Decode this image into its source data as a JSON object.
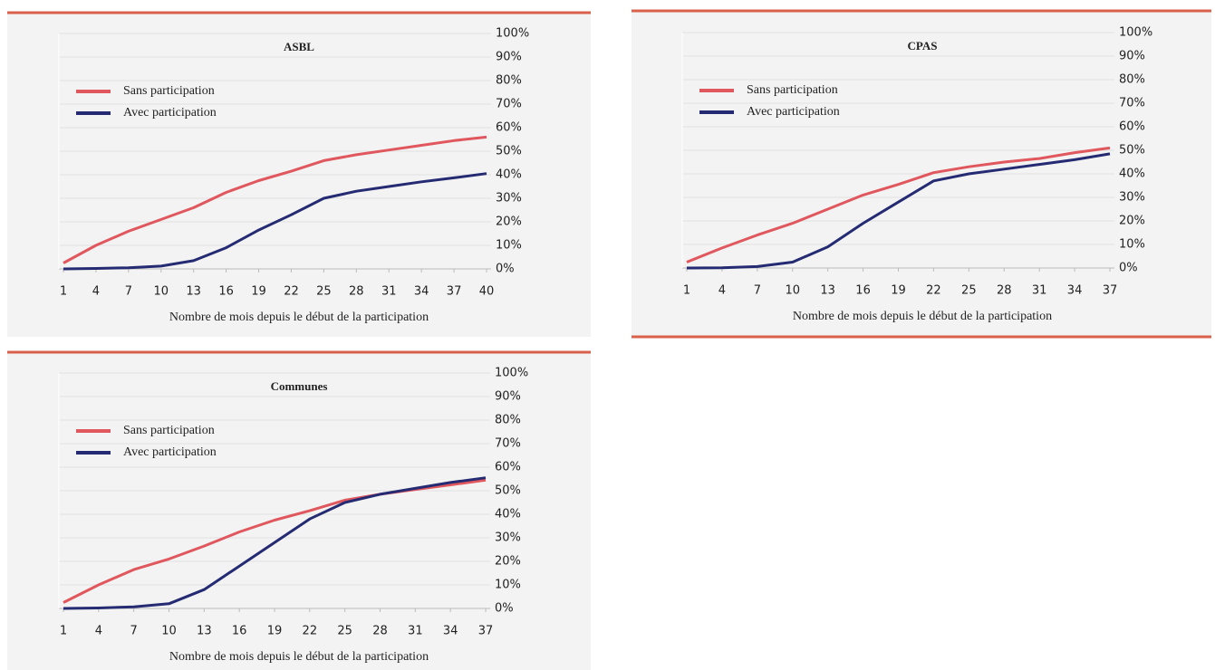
{
  "chart_data": [
    {
      "type": "line",
      "title": "ASBL",
      "xlabel": "Nombre de mois depuis le début de la participation",
      "x": [
        1,
        4,
        7,
        10,
        13,
        16,
        19,
        22,
        25,
        28,
        31,
        34,
        37,
        40
      ],
      "xlim": [
        1,
        40
      ],
      "xticks": [
        1,
        4,
        7,
        10,
        13,
        16,
        19,
        22,
        25,
        28,
        31,
        34,
        37,
        40
      ],
      "ylim": [
        0,
        100
      ],
      "yticks": [
        {
          "value": 0,
          "label": "0%"
        },
        {
          "value": 10,
          "label": "10%"
        },
        {
          "value": 20,
          "label": "20%"
        },
        {
          "value": 30,
          "label": "30%"
        },
        {
          "value": 40,
          "label": "40%"
        },
        {
          "value": 50,
          "label": "50%"
        },
        {
          "value": 60,
          "label": "60%"
        },
        {
          "value": 70,
          "label": "70%"
        },
        {
          "value": 80,
          "label": "80%"
        },
        {
          "value": 90,
          "label": "90%"
        },
        {
          "value": 100,
          "label": "100%"
        }
      ],
      "grid": true,
      "series": [
        {
          "name": "Sans participation",
          "color": "#e0575e",
          "values": [
            2.5,
            10,
            16,
            21,
            26,
            32.5,
            37.5,
            41.5,
            46,
            48.5,
            50.5,
            52.5,
            54.5,
            56
          ]
        },
        {
          "name": "Avec participation",
          "color": "#252b72",
          "values": [
            0,
            0.2,
            0.5,
            1.2,
            3.5,
            9,
            16.5,
            23,
            30,
            33,
            35,
            37,
            38.7,
            40.5
          ]
        }
      ]
    },
    {
      "type": "line",
      "title": "CPAS",
      "xlabel": "Nombre de mois depuis le début de la participation",
      "x": [
        1,
        4,
        7,
        10,
        13,
        16,
        19,
        22,
        25,
        28,
        31,
        34,
        37
      ],
      "xlim": [
        1,
        37
      ],
      "xticks": [
        1,
        4,
        7,
        10,
        13,
        16,
        19,
        22,
        25,
        28,
        31,
        34,
        37
      ],
      "ylim": [
        0,
        100
      ],
      "yticks": [
        {
          "value": 0,
          "label": "0%"
        },
        {
          "value": 10,
          "label": "10%"
        },
        {
          "value": 20,
          "label": "20%"
        },
        {
          "value": 30,
          "label": "30%"
        },
        {
          "value": 40,
          "label": "40%"
        },
        {
          "value": 50,
          "label": "50%"
        },
        {
          "value": 60,
          "label": "60%"
        },
        {
          "value": 70,
          "label": "70%"
        },
        {
          "value": 80,
          "label": "80%"
        },
        {
          "value": 90,
          "label": "90%"
        },
        {
          "value": 100,
          "label": "100%"
        }
      ],
      "grid": true,
      "series": [
        {
          "name": "Sans participation",
          "color": "#e0575e",
          "values": [
            2.5,
            8.5,
            14,
            19,
            25,
            31,
            35.5,
            40.5,
            43,
            45,
            46.5,
            49,
            51
          ]
        },
        {
          "name": "Avec participation",
          "color": "#252b72",
          "values": [
            0,
            0.1,
            0.6,
            2.5,
            9,
            19,
            28,
            37,
            40,
            42,
            44,
            46,
            48.5
          ]
        }
      ]
    },
    {
      "type": "line",
      "title": "Communes",
      "xlabel": "Nombre de mois depuis le début de la participation",
      "x": [
        1,
        4,
        7,
        10,
        13,
        16,
        19,
        22,
        25,
        28,
        31,
        34,
        37
      ],
      "xlim": [
        1,
        37
      ],
      "xticks": [
        1,
        4,
        7,
        10,
        13,
        16,
        19,
        22,
        25,
        28,
        31,
        34,
        37
      ],
      "ylim": [
        0,
        100
      ],
      "yticks": [
        {
          "value": 0,
          "label": "0%"
        },
        {
          "value": 10,
          "label": "10%"
        },
        {
          "value": 20,
          "label": "20%"
        },
        {
          "value": 30,
          "label": "30%"
        },
        {
          "value": 40,
          "label": "40%"
        },
        {
          "value": 50,
          "label": "50%"
        },
        {
          "value": 60,
          "label": "60%"
        },
        {
          "value": 70,
          "label": "70%"
        },
        {
          "value": 80,
          "label": "80%"
        },
        {
          "value": 90,
          "label": "90%"
        },
        {
          "value": 100,
          "label": "100%"
        }
      ],
      "grid": true,
      "series": [
        {
          "name": "Sans participation",
          "color": "#e0575e",
          "values": [
            2.5,
            10,
            16.5,
            21,
            26.5,
            32.5,
            37.5,
            41.5,
            46,
            48.5,
            50.5,
            52.5,
            54.5
          ]
        },
        {
          "name": "Avec participation",
          "color": "#252b72",
          "values": [
            0,
            0.2,
            0.7,
            2,
            8,
            18,
            28,
            38,
            45,
            48.5,
            51,
            53.5,
            55.5
          ]
        }
      ]
    }
  ]
}
